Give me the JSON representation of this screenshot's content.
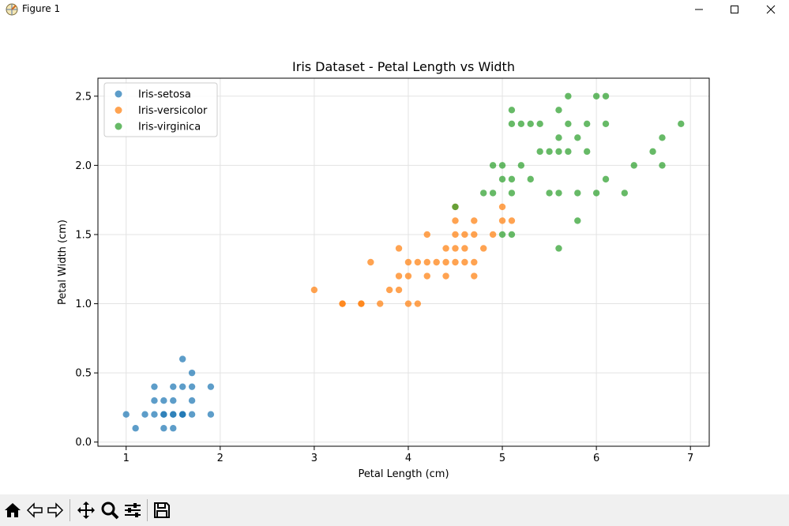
{
  "window": {
    "title": "Figure 1"
  },
  "chart_data": {
    "type": "scatter",
    "title": "Iris Dataset - Petal Length vs Width",
    "xlabel": "Petal Length (cm)",
    "ylabel": "Petal Width (cm)",
    "xlim": [
      0.7,
      7.2
    ],
    "ylim": [
      -0.03,
      2.63
    ],
    "xticks": [
      1,
      2,
      3,
      4,
      5,
      6,
      7
    ],
    "xtick_labels": [
      "1",
      "2",
      "3",
      "4",
      "5",
      "6",
      "7"
    ],
    "yticks": [
      0.0,
      0.5,
      1.0,
      1.5,
      2.0,
      2.5
    ],
    "ytick_labels": [
      "0.0",
      "0.5",
      "1.0",
      "1.5",
      "2.0",
      "2.5"
    ],
    "grid": true,
    "legend_position": "top-left",
    "series": [
      {
        "name": "Iris-setosa",
        "color": "#1f77b4",
        "x": [
          1.0,
          1.1,
          1.2,
          1.3,
          1.4,
          1.5,
          1.6,
          1.3,
          1.4,
          1.5,
          1.7,
          1.9,
          1.3,
          1.5,
          1.6,
          1.7,
          1.9,
          1.4,
          1.5,
          1.6,
          1.7,
          1.4,
          1.5,
          1.6,
          1.7,
          1.6
        ],
        "y": [
          0.2,
          0.1,
          0.2,
          0.2,
          0.2,
          0.2,
          0.2,
          0.3,
          0.3,
          0.3,
          0.3,
          0.2,
          0.4,
          0.4,
          0.4,
          0.4,
          0.4,
          0.1,
          0.1,
          0.2,
          0.5,
          0.2,
          0.2,
          0.2,
          0.2,
          0.6
        ]
      },
      {
        "name": "Iris-versicolor",
        "color": "#ff7f0e",
        "x": [
          3.0,
          3.3,
          3.5,
          3.7,
          4.0,
          4.1,
          3.3,
          3.5,
          3.8,
          3.9,
          3.9,
          4.0,
          4.2,
          4.4,
          4.7,
          3.6,
          4.0,
          4.1,
          4.2,
          4.3,
          4.4,
          4.5,
          4.6,
          4.7,
          3.9,
          4.4,
          4.5,
          4.6,
          4.8,
          4.2,
          4.5,
          4.6,
          4.7,
          4.9,
          4.5,
          4.7,
          5.0,
          4.5,
          5.1,
          5.0
        ],
        "y": [
          1.1,
          1.0,
          1.0,
          1.0,
          1.0,
          1.0,
          1.0,
          1.0,
          1.1,
          1.1,
          1.2,
          1.2,
          1.2,
          1.2,
          1.2,
          1.3,
          1.3,
          1.3,
          1.3,
          1.3,
          1.3,
          1.3,
          1.3,
          1.3,
          1.4,
          1.4,
          1.4,
          1.4,
          1.4,
          1.5,
          1.5,
          1.5,
          1.5,
          1.5,
          1.6,
          1.6,
          1.6,
          1.7,
          1.6,
          1.7
        ]
      },
      {
        "name": "Iris-virginica",
        "color": "#2ca02c",
        "x": [
          5.6,
          5.0,
          5.1,
          5.8,
          4.5,
          4.8,
          4.9,
          5.1,
          5.5,
          5.6,
          5.8,
          6.0,
          6.3,
          5.0,
          5.1,
          5.3,
          6.1,
          4.9,
          5.0,
          5.2,
          6.4,
          6.7,
          5.4,
          5.5,
          5.6,
          5.7,
          5.9,
          6.6,
          5.6,
          5.8,
          6.7,
          5.1,
          5.2,
          5.3,
          5.4,
          5.7,
          5.9,
          6.1,
          6.9,
          5.6,
          5.1,
          5.7,
          6.0,
          6.1
        ],
        "y": [
          1.4,
          1.5,
          1.5,
          1.6,
          1.7,
          1.8,
          1.8,
          1.8,
          1.8,
          1.8,
          1.8,
          1.8,
          1.8,
          1.9,
          1.9,
          1.9,
          1.9,
          2.0,
          2.0,
          2.0,
          2.0,
          2.0,
          2.1,
          2.1,
          2.1,
          2.1,
          2.1,
          2.1,
          2.2,
          2.2,
          2.2,
          2.3,
          2.3,
          2.3,
          2.3,
          2.3,
          2.3,
          2.3,
          2.3,
          2.4,
          2.4,
          2.5,
          2.5,
          2.5
        ]
      }
    ]
  },
  "toolbar": {
    "items": [
      {
        "name": "home-icon"
      },
      {
        "name": "back-arrow-icon"
      },
      {
        "name": "forward-arrow-icon"
      },
      {
        "name": "pan-icon"
      },
      {
        "name": "zoom-icon"
      },
      {
        "name": "configure-subplots-icon"
      },
      {
        "name": "save-icon"
      }
    ]
  }
}
